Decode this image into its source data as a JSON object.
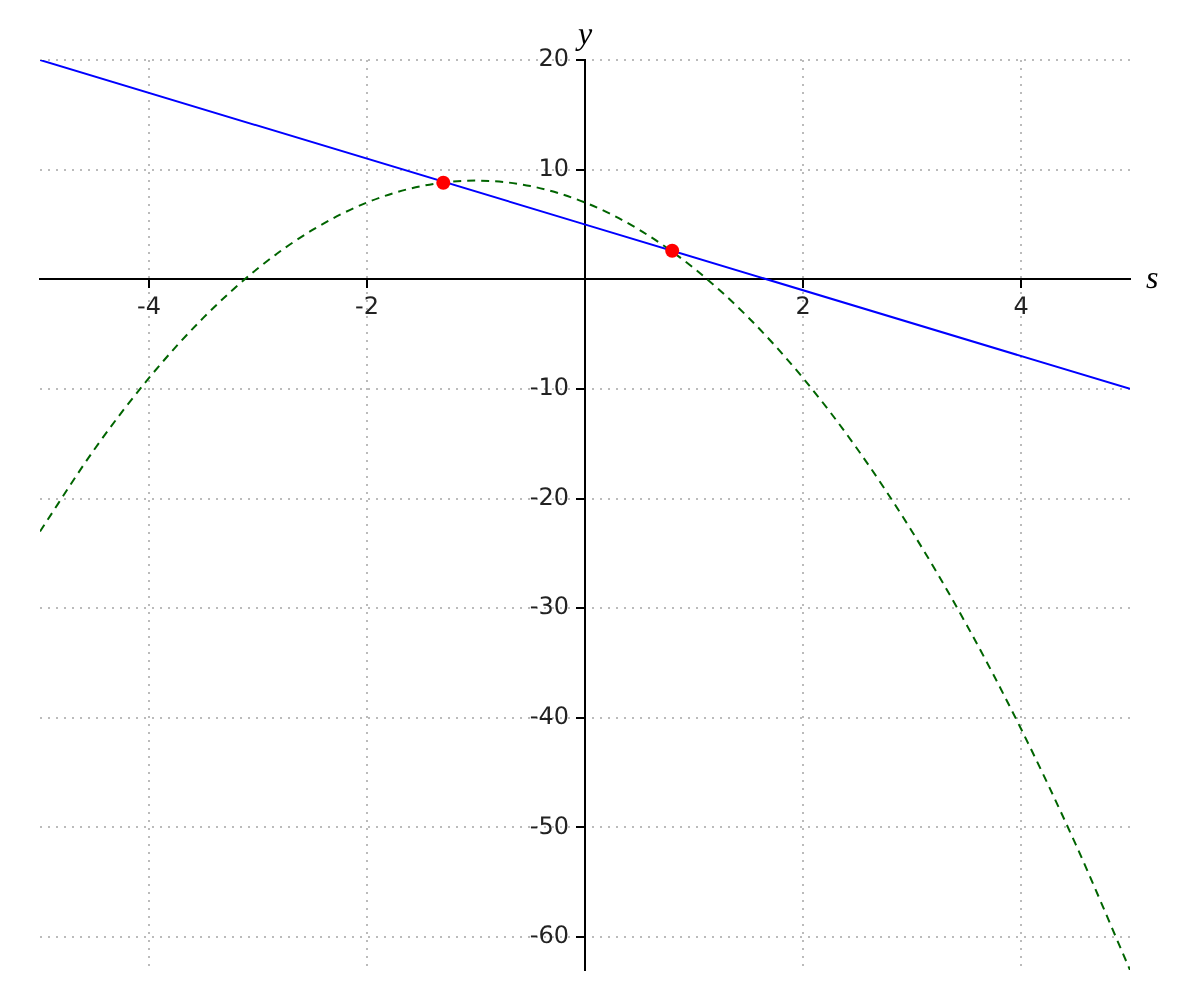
{
  "chart_data": {
    "type": "line",
    "xlabel": "s",
    "ylabel": "y",
    "xlim": [
      -5,
      5
    ],
    "ylim": [
      -63,
      20
    ],
    "xticks": [
      -4,
      -2,
      2,
      4
    ],
    "yticks": [
      -60,
      -50,
      -40,
      -30,
      -20,
      -10,
      10,
      20
    ],
    "grid": true,
    "legend": false,
    "series": [
      {
        "type": "line",
        "x": [
          -5,
          5
        ],
        "values": [
          20,
          -10
        ],
        "color": "#0000ff",
        "line_style": "solid",
        "marker": "none"
      },
      {
        "type": "line",
        "x": [
          -5,
          -4.5,
          -4,
          -3.5,
          -3,
          -2.5,
          -2,
          -1.5,
          -1,
          -0.5,
          0,
          0.5,
          1,
          1.5,
          2,
          2.5,
          3,
          3.5,
          4,
          4.5,
          5
        ],
        "values": [
          -23,
          -15.5,
          -9,
          -3.5,
          1,
          4.5,
          7,
          8.5,
          9,
          8.5,
          7,
          4.5,
          1,
          -3.5,
          -9,
          -15.5,
          -23,
          -31.5,
          -41,
          -51.5,
          -63
        ],
        "color": "#006400",
        "line_style": "dashed",
        "marker": "none"
      },
      {
        "type": "scatter",
        "x": [
          -1.3,
          0.8
        ],
        "values": [
          8.8,
          2.6
        ],
        "color": "#ff0000",
        "marker": "circle"
      }
    ]
  }
}
